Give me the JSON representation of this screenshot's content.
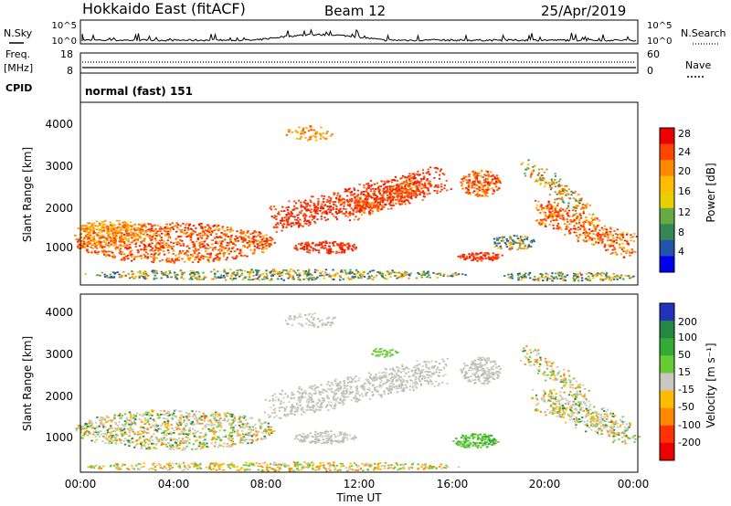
{
  "header": {
    "title": "Hokkaido East (fitACF)",
    "beam": "Beam 12",
    "date": "25/Apr/2019"
  },
  "panels": {
    "nsky_label": "N.Sky",
    "nsearch_label": "N.Search",
    "freq_label_top": "Freq.",
    "freq_label_bottom": "[MHz]",
    "nave_label": "Nave",
    "cpid_label": "CPID",
    "cpid_value": "normal (fast) 151"
  },
  "chart_data": [
    {
      "type": "line",
      "name": "noise",
      "left_ticks": [
        "10^5",
        "10^0"
      ],
      "right_ticks": [
        "10^5",
        "10^0"
      ]
    },
    {
      "type": "line",
      "name": "frequency-nave",
      "left_ticks": [
        "18",
        "8"
      ],
      "right_ticks": [
        "60",
        "0"
      ]
    },
    {
      "type": "heatmap",
      "name": "power",
      "ylabel": "Slant Range [km]",
      "colorbar_label": "Power [dB]",
      "y_ticks": [
        "1000",
        "2000",
        "3000",
        "4000"
      ],
      "colorbar_ticks": [
        "28",
        "24",
        "20",
        "16",
        "12",
        "8",
        "4"
      ],
      "colors": [
        "#ee0000",
        "#ff4400",
        "#ff8800",
        "#ffbb00",
        "#e8d000",
        "#66aa44",
        "#338855",
        "#2255aa",
        "#0000ee"
      ]
    },
    {
      "type": "heatmap",
      "name": "velocity",
      "ylabel": "Slant Range [km]",
      "colorbar_label": "Velocity [m s⁻¹]",
      "y_ticks": [
        "1000",
        "2000",
        "3000",
        "4000"
      ],
      "colorbar_ticks": [
        "200",
        "100",
        "50",
        "15",
        "-15",
        "-50",
        "-100",
        "-200"
      ],
      "colors": [
        "#2233bb",
        "#228844",
        "#33aa33",
        "#66cc33",
        "#c8c8c0",
        "#ffbb00",
        "#ff8800",
        "#ff3300",
        "#ee0000"
      ]
    }
  ],
  "xaxis": {
    "ticks": [
      "00:00",
      "04:00",
      "08:00",
      "12:00",
      "16:00",
      "20:00",
      "00:00"
    ],
    "label": "Time UT"
  }
}
